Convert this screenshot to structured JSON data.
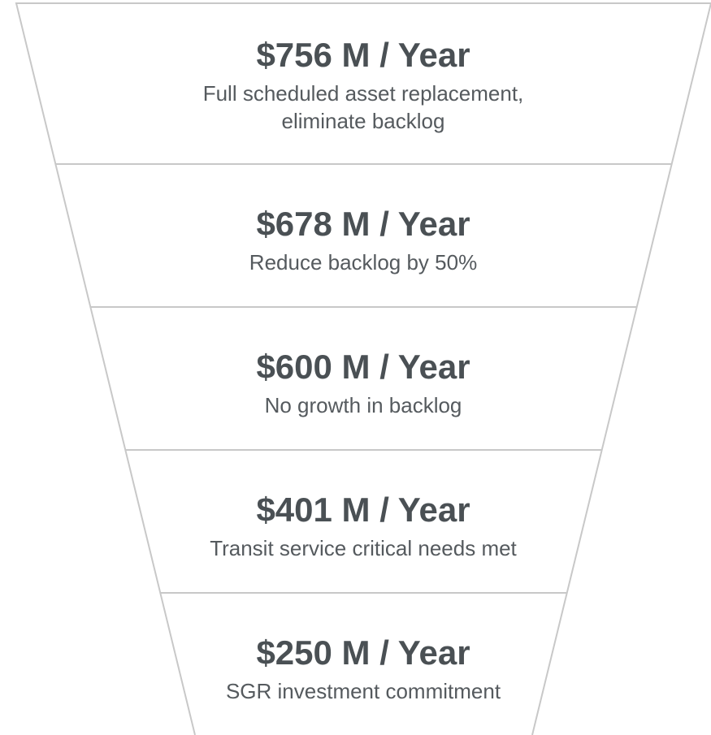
{
  "levels": [
    {
      "amount": "$756 M / Year",
      "description": [
        "Full scheduled asset replacement,",
        "eliminate backlog"
      ]
    },
    {
      "amount": "$678 M / Year",
      "description": [
        "Reduce backlog by 50%"
      ]
    },
    {
      "amount": "$600 M / Year",
      "description": [
        "No growth in backlog"
      ]
    },
    {
      "amount": "$401 M / Year",
      "description": [
        "Transit service critical needs met"
      ]
    },
    {
      "amount": "$250 M / Year",
      "description": [
        "SGR investment commitment"
      ]
    }
  ]
}
